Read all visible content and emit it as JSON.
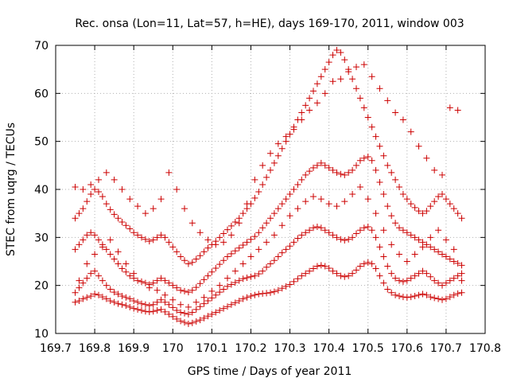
{
  "chart_data": {
    "type": "scatter",
    "title": "Rec. onsa (Lon=11, Lat=57, h=HE), days 169-170, 2011, window 003",
    "xlabel": "GPS time / Days of year 2011",
    "ylabel": "STEC from uqrg / TECUs",
    "xlim": [
      169.7,
      170.8
    ],
    "ylim": [
      10,
      70
    ],
    "x_ticks": [
      "169.7",
      "169.8",
      "169.9",
      "170",
      "170.1",
      "170.2",
      "170.3",
      "170.4",
      "170.5",
      "170.6",
      "170.7",
      "170.8"
    ],
    "y_ticks": [
      "10",
      "20",
      "30",
      "40",
      "50",
      "60",
      "70"
    ],
    "grid": true,
    "marker": "+",
    "color": "#cc0000",
    "series": [
      {
        "x": [
          169.75,
          169.76,
          169.77,
          169.78,
          169.79,
          169.8,
          169.81,
          169.82,
          169.83,
          169.84,
          169.85,
          169.86,
          169.87,
          169.88,
          169.89,
          169.9,
          169.91,
          169.92,
          169.93,
          169.94,
          169.95,
          169.96,
          169.97,
          169.98,
          169.99,
          170.0,
          170.01,
          170.02,
          170.03,
          170.04,
          170.05,
          170.06,
          170.07,
          170.08,
          170.09,
          170.1,
          170.11,
          170.12,
          170.13,
          170.14,
          170.15,
          170.16,
          170.17,
          170.18,
          170.19,
          170.2,
          170.21,
          170.22,
          170.23,
          170.24,
          170.25,
          170.26,
          170.27,
          170.28,
          170.29,
          170.3,
          170.31,
          170.32,
          170.33,
          170.34,
          170.35,
          170.36,
          170.37,
          170.38,
          170.39,
          170.4,
          170.41,
          170.42,
          170.43,
          170.44,
          170.45,
          170.46,
          170.47,
          170.48,
          170.49,
          170.5,
          170.51,
          170.52,
          170.53,
          170.54,
          170.55,
          170.56,
          170.57,
          170.58,
          170.59,
          170.6,
          170.61,
          170.62,
          170.63,
          170.64,
          170.65,
          170.66,
          170.67,
          170.68,
          170.69,
          170.7,
          170.71,
          170.72,
          170.73,
          170.74
        ],
        "y": [
          16.5,
          16.8,
          17.2,
          17.5,
          17.8,
          18.2,
          18.0,
          17.6,
          17.2,
          16.8,
          16.5,
          16.2,
          16.0,
          15.8,
          15.5,
          15.2,
          15.0,
          14.8,
          14.6,
          14.5,
          14.6,
          14.8,
          15.0,
          14.5,
          14.0,
          13.5,
          13.0,
          12.6,
          12.3,
          12.0,
          12.2,
          12.5,
          12.8,
          13.2,
          13.6,
          14.0,
          14.4,
          14.8,
          15.2,
          15.6,
          16.0,
          16.4,
          16.8,
          17.2,
          17.5,
          17.8,
          18.0,
          18.2,
          18.3,
          18.4,
          18.5,
          18.7,
          19.0,
          19.4,
          19.8,
          20.2,
          20.8,
          21.4,
          22.0,
          22.5,
          23.0,
          23.5,
          24.0,
          24.2,
          24.0,
          23.6,
          23.0,
          22.5,
          22.0,
          21.8,
          22.0,
          22.5,
          23.2,
          24.0,
          24.5,
          24.8,
          24.5,
          23.5,
          22.0,
          20.5,
          19.2,
          18.5,
          18.0,
          17.8,
          17.6,
          17.5,
          17.6,
          17.8,
          18.0,
          18.2,
          18.0,
          17.6,
          17.4,
          17.2,
          17.0,
          17.2,
          17.6,
          18.0,
          18.3,
          18.5
        ]
      },
      {
        "x": [
          169.75,
          169.76,
          169.77,
          169.78,
          169.79,
          169.8,
          169.81,
          169.82,
          169.83,
          169.84,
          169.85,
          169.86,
          169.87,
          169.88,
          169.89,
          169.9,
          169.91,
          169.92,
          169.93,
          169.94,
          169.95,
          169.96,
          169.97,
          169.98,
          169.99,
          170.0,
          170.01,
          170.02,
          170.03,
          170.04,
          170.05,
          170.06,
          170.07,
          170.08,
          170.09,
          170.1,
          170.11,
          170.12,
          170.13,
          170.14,
          170.15,
          170.16,
          170.17,
          170.18,
          170.19,
          170.2,
          170.21,
          170.22,
          170.23,
          170.24,
          170.25,
          170.26,
          170.27,
          170.28,
          170.29,
          170.3,
          170.31,
          170.32,
          170.33,
          170.34,
          170.35,
          170.36,
          170.37,
          170.38,
          170.39,
          170.4,
          170.41,
          170.42,
          170.43,
          170.44,
          170.45,
          170.46,
          170.47,
          170.48,
          170.49,
          170.5,
          170.51,
          170.52,
          170.53,
          170.54,
          170.55,
          170.56,
          170.57,
          170.58,
          170.59,
          170.6,
          170.61,
          170.62,
          170.63,
          170.64,
          170.65,
          170.66,
          170.67,
          170.68,
          170.69,
          170.7,
          170.71,
          170.72,
          170.73,
          170.74
        ],
        "y": [
          18.5,
          19.5,
          20.5,
          21.5,
          22.5,
          23.0,
          22.0,
          21.0,
          20.0,
          19.2,
          18.6,
          18.2,
          17.8,
          17.5,
          17.2,
          16.8,
          16.5,
          16.2,
          16.0,
          15.8,
          16.0,
          16.5,
          17.0,
          16.5,
          16.0,
          15.4,
          14.8,
          14.4,
          14.2,
          14.0,
          14.4,
          15.0,
          15.6,
          16.2,
          16.8,
          17.4,
          18.0,
          18.6,
          19.2,
          19.8,
          20.2,
          20.6,
          21.0,
          21.4,
          21.6,
          21.8,
          22.0,
          22.4,
          23.0,
          23.8,
          24.5,
          25.2,
          26.0,
          26.8,
          27.5,
          28.2,
          29.0,
          29.8,
          30.5,
          31.0,
          31.5,
          32.0,
          32.2,
          32.0,
          31.5,
          31.0,
          30.5,
          30.0,
          29.6,
          29.4,
          29.6,
          30.0,
          30.8,
          31.5,
          32.0,
          32.2,
          31.5,
          30.0,
          28.0,
          26.0,
          24.0,
          22.5,
          21.5,
          21.0,
          20.8,
          21.0,
          21.5,
          22.0,
          22.5,
          23.0,
          22.5,
          21.8,
          21.0,
          20.5,
          20.0,
          20.5,
          21.0,
          21.5,
          22.0,
          22.5
        ]
      },
      {
        "x": [
          169.75,
          169.76,
          169.77,
          169.78,
          169.79,
          169.8,
          169.81,
          169.82,
          169.83,
          169.84,
          169.85,
          169.86,
          169.87,
          169.88,
          169.89,
          169.9,
          169.91,
          169.92,
          169.93,
          169.94,
          169.95,
          169.96,
          169.97,
          169.98,
          169.99,
          170.0,
          170.01,
          170.02,
          170.03,
          170.04,
          170.05,
          170.06,
          170.07,
          170.08,
          170.09,
          170.1,
          170.11,
          170.12,
          170.13,
          170.14,
          170.15,
          170.16,
          170.17,
          170.18,
          170.19,
          170.2,
          170.21,
          170.22,
          170.23,
          170.24,
          170.25,
          170.26,
          170.27,
          170.28,
          170.29,
          170.3,
          170.31,
          170.32,
          170.33,
          170.34,
          170.35,
          170.36,
          170.37,
          170.38,
          170.39,
          170.4,
          170.41,
          170.42,
          170.43,
          170.44,
          170.45,
          170.46,
          170.47,
          170.48,
          170.49,
          170.5,
          170.51,
          170.52,
          170.53,
          170.54,
          170.55,
          170.56,
          170.57,
          170.58,
          170.59,
          170.6,
          170.61,
          170.62,
          170.63,
          170.64,
          170.65,
          170.66,
          170.67,
          170.68,
          170.69,
          170.7,
          170.71,
          170.72,
          170.73,
          170.74
        ],
        "y": [
          27.5,
          28.5,
          29.5,
          30.5,
          31.0,
          30.5,
          29.5,
          28.5,
          27.5,
          26.5,
          25.5,
          24.5,
          23.5,
          22.8,
          22.0,
          21.5,
          21.0,
          20.8,
          20.5,
          20.2,
          20.5,
          21.0,
          21.5,
          21.0,
          20.5,
          20.0,
          19.5,
          19.0,
          18.8,
          18.6,
          19.0,
          19.6,
          20.4,
          21.2,
          22.0,
          22.8,
          23.6,
          24.4,
          25.2,
          26.0,
          26.6,
          27.2,
          27.8,
          28.4,
          29.0,
          29.6,
          30.2,
          31.0,
          32.0,
          33.0,
          34.0,
          35.0,
          36.0,
          37.0,
          38.0,
          39.0,
          40.0,
          41.0,
          42.0,
          43.0,
          43.8,
          44.5,
          45.0,
          45.5,
          45.0,
          44.5,
          44.0,
          43.5,
          43.2,
          43.0,
          43.5,
          44.0,
          45.0,
          46.0,
          46.5,
          46.8,
          46.0,
          44.0,
          41.5,
          39.0,
          36.5,
          34.5,
          33.0,
          32.0,
          31.5,
          31.0,
          30.5,
          30.0,
          29.5,
          29.0,
          28.5,
          28.0,
          27.5,
          27.0,
          26.5,
          26.0,
          25.5,
          25.0,
          24.6,
          24.2
        ]
      },
      {
        "x": [
          169.75,
          169.76,
          169.77,
          169.78,
          169.79,
          169.8,
          169.81,
          169.82,
          169.83,
          169.84,
          169.85,
          169.86,
          169.87,
          169.88,
          169.89,
          169.9,
          169.91,
          169.92,
          169.93,
          169.94,
          169.95,
          169.96,
          169.97,
          169.98,
          169.99,
          170.0,
          170.01,
          170.02,
          170.03,
          170.04,
          170.05,
          170.06,
          170.07,
          170.08,
          170.09,
          170.1,
          170.11,
          170.12,
          170.13,
          170.14,
          170.15,
          170.16,
          170.17,
          170.18,
          170.19,
          170.2,
          170.21,
          170.22,
          170.23,
          170.24,
          170.25,
          170.26,
          170.27,
          170.28,
          170.29,
          170.3,
          170.31,
          170.32,
          170.33,
          170.34,
          170.35,
          170.36,
          170.37,
          170.38,
          170.39,
          170.4,
          170.41,
          170.42,
          170.43,
          170.44,
          170.45,
          170.46,
          170.47,
          170.48,
          170.49,
          170.5,
          170.51,
          170.52,
          170.53,
          170.54,
          170.55,
          170.56,
          170.57,
          170.58,
          170.59,
          170.6,
          170.61,
          170.62,
          170.63,
          170.64,
          170.65,
          170.66,
          170.67,
          170.68,
          170.69,
          170.7,
          170.71,
          170.72,
          170.73,
          170.74
        ],
        "y": [
          34.0,
          35.0,
          36.0,
          37.5,
          39.0,
          40.0,
          39.5,
          38.5,
          37.0,
          35.8,
          34.8,
          34.0,
          33.2,
          32.5,
          31.8,
          31.0,
          30.5,
          30.0,
          29.6,
          29.2,
          29.5,
          30.0,
          30.5,
          30.0,
          29.0,
          28.0,
          27.0,
          26.0,
          25.2,
          24.5,
          24.8,
          25.5,
          26.2,
          27.0,
          27.8,
          28.5,
          29.2,
          30.0,
          30.8,
          31.6,
          32.4,
          33.2,
          34.0,
          35.0,
          36.0,
          37.0,
          38.2,
          39.5,
          41.0,
          42.5,
          44.0,
          45.5,
          47.0,
          48.5,
          50.0,
          51.5,
          53.0,
          54.5,
          56.0,
          57.5,
          59.0,
          60.5,
          62.0,
          63.5,
          65.0,
          66.5,
          68.0,
          69.0,
          68.5,
          67.0,
          65.0,
          63.0,
          61.0,
          59.0,
          57.0,
          55.0,
          53.0,
          51.0,
          49.0,
          47.0,
          45.0,
          43.5,
          42.0,
          40.5,
          39.0,
          38.0,
          37.0,
          36.2,
          35.5,
          35.0,
          35.5,
          36.5,
          37.5,
          38.5,
          39.0,
          38.0,
          37.0,
          36.0,
          35.0,
          34.0
        ]
      },
      {
        "x": [
          169.75,
          169.77,
          169.79,
          169.81,
          169.83,
          169.85,
          169.87,
          169.89,
          169.91,
          169.93,
          169.95,
          169.97,
          169.99,
          170.01,
          170.03,
          170.05,
          170.07,
          170.09,
          170.11,
          170.13,
          170.15,
          170.17,
          170.19,
          170.21,
          170.23,
          170.25,
          170.27,
          170.29,
          170.31,
          170.33,
          170.35,
          170.37,
          170.39,
          170.41,
          170.43,
          170.45,
          170.47,
          170.49,
          170.51,
          170.53,
          170.55,
          170.57,
          170.59,
          170.61,
          170.63,
          170.65,
          170.67,
          170.69,
          170.71,
          170.73
        ],
        "y": [
          40.5,
          40.0,
          41.0,
          42.0,
          43.5,
          42.0,
          40.0,
          38.0,
          36.5,
          35.0,
          36.0,
          38.0,
          43.5,
          40.0,
          36.0,
          33.0,
          31.0,
          29.5,
          28.5,
          29.0,
          30.5,
          33.0,
          37.0,
          42.0,
          45.0,
          47.5,
          49.5,
          51.0,
          52.5,
          54.5,
          56.5,
          58.0,
          60.0,
          62.5,
          63.0,
          64.5,
          65.5,
          66.0,
          63.5,
          61.0,
          58.5,
          56.0,
          54.5,
          52.0,
          49.0,
          46.5,
          44.0,
          43.0,
          57.0,
          56.5
        ]
      },
      {
        "x": [
          169.76,
          169.78,
          169.8,
          169.82,
          169.84,
          169.86,
          169.88,
          169.9,
          169.92,
          169.94,
          169.96,
          169.98,
          170.0,
          170.02,
          170.04,
          170.06,
          170.08,
          170.1,
          170.12,
          170.14,
          170.16,
          170.18,
          170.2,
          170.22,
          170.24,
          170.26,
          170.28,
          170.3,
          170.32,
          170.34,
          170.36,
          170.38,
          170.4,
          170.42,
          170.44,
          170.46,
          170.48,
          170.5,
          170.52,
          170.54,
          170.56,
          170.58,
          170.6,
          170.62,
          170.64,
          170.66,
          170.68,
          170.7,
          170.72,
          170.74
        ],
        "y": [
          21.0,
          24.5,
          26.5,
          28.0,
          29.5,
          27.0,
          24.5,
          22.5,
          20.8,
          19.5,
          19.0,
          18.0,
          17.0,
          16.0,
          15.5,
          16.5,
          17.5,
          18.8,
          20.0,
          21.5,
          23.0,
          24.5,
          26.0,
          27.5,
          29.0,
          30.5,
          32.5,
          34.5,
          36.0,
          37.5,
          38.5,
          38.0,
          37.0,
          36.5,
          37.5,
          39.0,
          40.5,
          38.0,
          35.0,
          31.5,
          28.5,
          26.5,
          25.0,
          26.5,
          28.0,
          30.0,
          31.5,
          29.5,
          27.5,
          21.0
        ]
      }
    ]
  }
}
